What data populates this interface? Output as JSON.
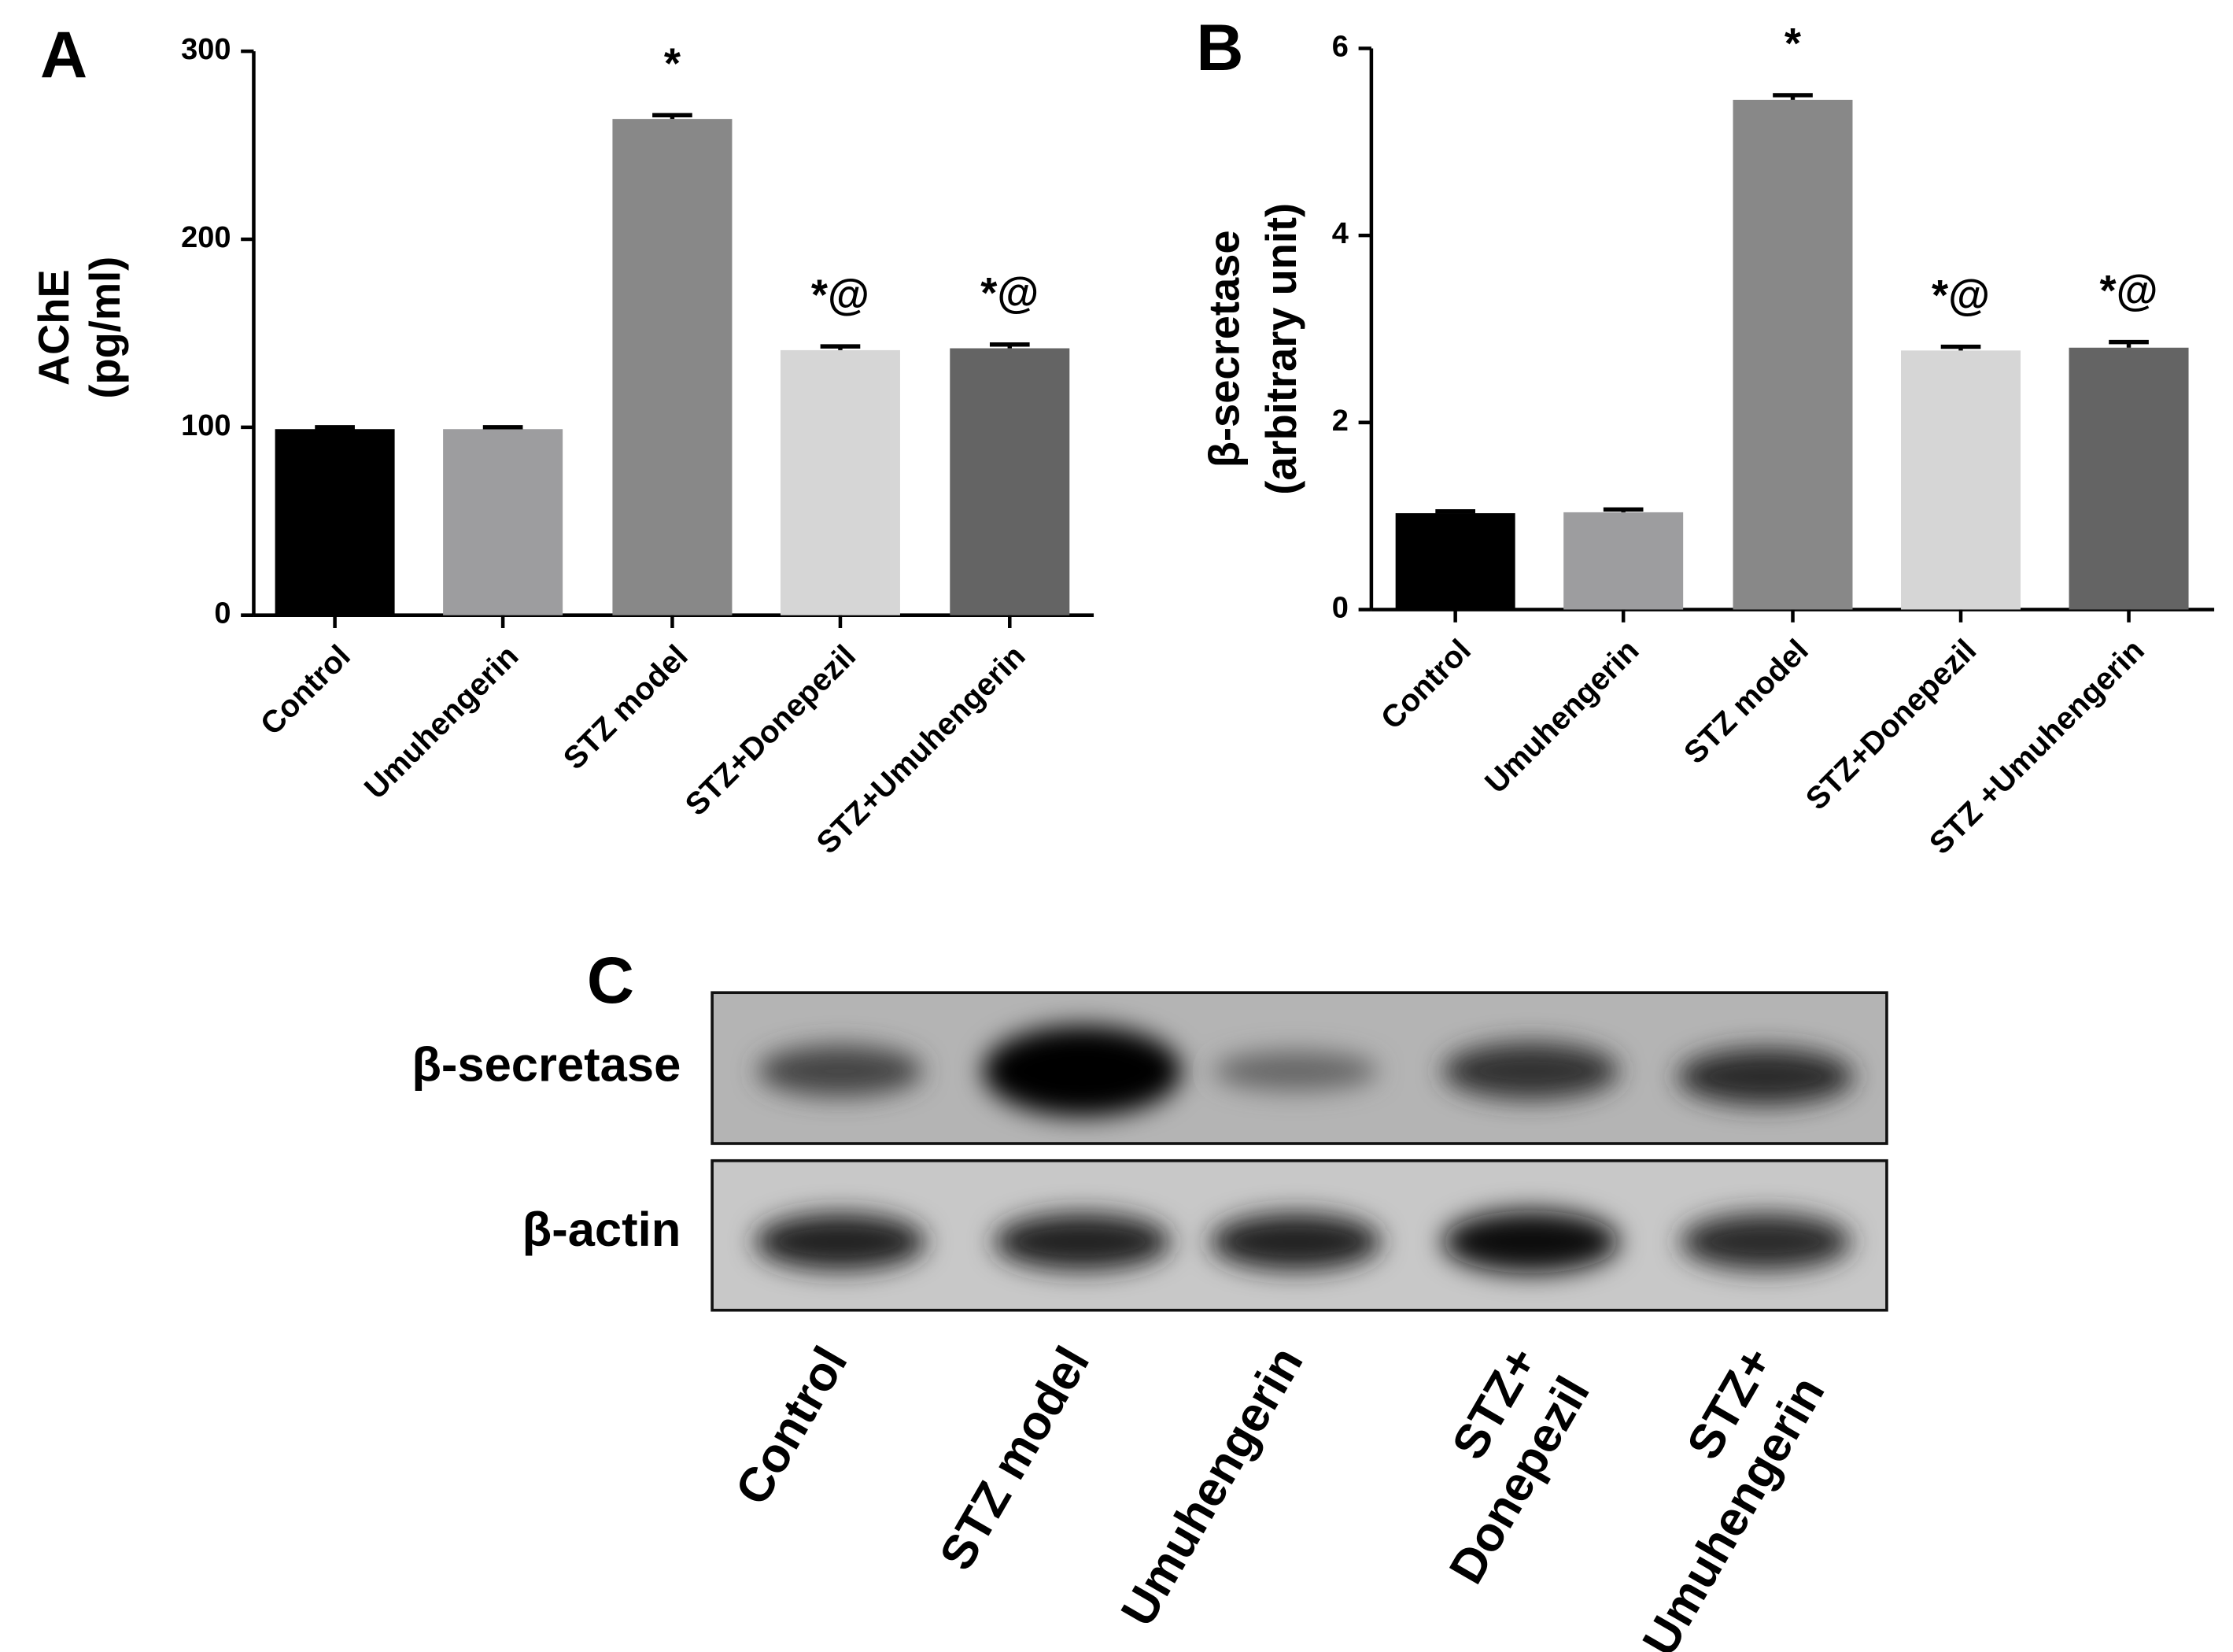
{
  "chart_data": [
    {
      "type": "bar",
      "panel": "A",
      "y_label": [
        "AChE",
        "(pg/ml)"
      ],
      "categories": [
        "Control",
        "Umuhengerin",
        "STZ model",
        "STZ+Donepezil",
        "STZ+Umuhengerin"
      ],
      "values": [
        99,
        99,
        264,
        141,
        142
      ],
      "errors": [
        1,
        1,
        2,
        2,
        2
      ],
      "annotations": [
        null,
        null,
        "*",
        "*@",
        "*@"
      ],
      "colors": [
        "#000000",
        "#9d9d9f",
        "#888888",
        "#d6d6d6",
        "#646464"
      ],
      "ylim": [
        0,
        300
      ],
      "yticks": [
        0,
        100,
        200,
        300
      ]
    },
    {
      "type": "bar",
      "panel": "B",
      "y_label": [
        "β-secretase",
        "(arbitrary unit)"
      ],
      "categories": [
        "Control",
        "Umuhengerin",
        "STZ model",
        "STZ+Donepezil",
        "STZ +Umuhengerin"
      ],
      "values": [
        1.03,
        1.04,
        5.45,
        2.77,
        2.8
      ],
      "errors": [
        0.02,
        0.03,
        0.05,
        0.04,
        0.06
      ],
      "annotations": [
        null,
        null,
        "*",
        "*@",
        "*@"
      ],
      "colors": [
        "#000000",
        "#9d9d9f",
        "#888888",
        "#d6d6d6",
        "#646464"
      ],
      "ylim": [
        0,
        6
      ],
      "yticks": [
        0,
        2,
        4,
        6
      ]
    }
  ],
  "blot": {
    "panel": "C",
    "rows": [
      "β-secretase",
      "β-actin"
    ],
    "lanes": [
      [
        "Control"
      ],
      [
        "STZ model"
      ],
      [
        "Umuhengerin"
      ],
      [
        "STZ+",
        "Donepezil"
      ],
      [
        "STZ+",
        "Umuhengerin"
      ]
    ]
  }
}
